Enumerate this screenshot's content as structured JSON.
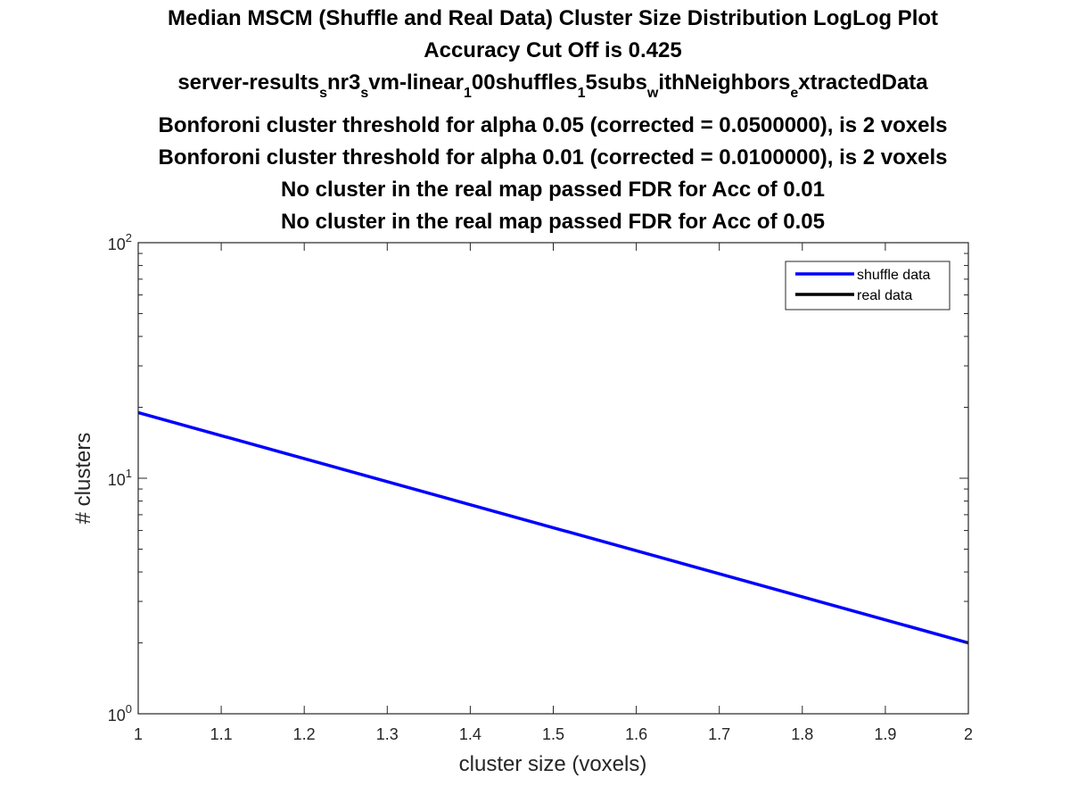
{
  "chart_data": {
    "type": "line",
    "title_lines": [
      "Median MSCM (Shuffle and Real Data) Cluster Size Distribution LogLog Plot",
      "Accuracy Cut Off is 0.425",
      {
        "segments": [
          {
            "text": "server-results",
            "sub": false
          },
          {
            "text": "s",
            "sub": true
          },
          {
            "text": "nr3",
            "sub": false
          },
          {
            "text": "s",
            "sub": true
          },
          {
            "text": "vm-linear",
            "sub": false
          },
          {
            "text": "1",
            "sub": true
          },
          {
            "text": "00shuffles",
            "sub": false
          },
          {
            "text": "1",
            "sub": true
          },
          {
            "text": "5subs",
            "sub": false
          },
          {
            "text": "w",
            "sub": true
          },
          {
            "text": "ithNeighbors",
            "sub": false
          },
          {
            "text": "e",
            "sub": true
          },
          {
            "text": "xtractedData",
            "sub": false
          }
        ]
      },
      "Bonforoni cluster threshold for alpha 0.05 (corrected = 0.0500000), is 2 voxels",
      "Bonforoni cluster threshold for alpha 0.01 (corrected = 0.0100000), is 2 voxels",
      "No cluster in the real map passed FDR for Acc of 0.01",
      "No cluster in the real map passed FDR for Acc of 0.05"
    ],
    "xlabel": "cluster size (voxels)",
    "ylabel": "# clusters",
    "xlim": [
      1,
      2
    ],
    "ylim": [
      1,
      100
    ],
    "xscale": "linear",
    "yscale": "log",
    "x_ticks": [
      "1",
      "1.1",
      "1.2",
      "1.3",
      "1.4",
      "1.5",
      "1.6",
      "1.7",
      "1.8",
      "1.9",
      "2"
    ],
    "y_ticks": [
      {
        "base": "10",
        "exp": "0",
        "value": 1
      },
      {
        "base": "10",
        "exp": "1",
        "value": 10
      },
      {
        "base": "10",
        "exp": "2",
        "value": 100
      }
    ],
    "grid": false,
    "legend_position": "top-right",
    "series": [
      {
        "name": "shuffle data",
        "color": "#0000ff",
        "x": [
          1,
          2
        ],
        "y": [
          19,
          2
        ]
      },
      {
        "name": "real data",
        "color": "#000000",
        "x": [],
        "y": []
      }
    ]
  }
}
